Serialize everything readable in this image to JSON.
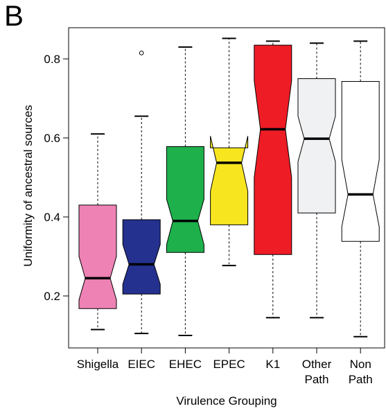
{
  "panel_label": "B",
  "chart_data": {
    "type": "boxplot",
    "notched": true,
    "xlabel": "Virulence Grouping",
    "ylabel": "Uniformity of ancestral sources",
    "ylim": [
      0.07,
      0.88
    ],
    "yticks": [
      0.2,
      0.4,
      0.6,
      0.8
    ],
    "ytick_labels": [
      "0.2",
      "0.4",
      "0.6",
      "0.8"
    ],
    "categories": [
      [
        "Shigella"
      ],
      [
        "EIEC"
      ],
      [
        "EHEC"
      ],
      [
        "EPEC"
      ],
      [
        "K1"
      ],
      [
        "Other",
        "Path"
      ],
      [
        "Non",
        "Path"
      ]
    ],
    "boxes": [
      {
        "color": "#ee82b4",
        "whisker_low": 0.115,
        "q1": 0.168,
        "notch_low": 0.19,
        "median": 0.245,
        "notch_high": 0.3,
        "q3": 0.43,
        "whisker_high": 0.61,
        "outliers": []
      },
      {
        "color": "#24318f",
        "whisker_low": 0.105,
        "q1": 0.205,
        "notch_low": 0.23,
        "median": 0.28,
        "notch_high": 0.33,
        "q3": 0.393,
        "whisker_high": 0.655,
        "outliers": [
          0.815
        ]
      },
      {
        "color": "#1db04b",
        "whisker_low": 0.1,
        "q1": 0.31,
        "notch_low": 0.33,
        "median": 0.39,
        "notch_high": 0.445,
        "q3": 0.578,
        "whisker_high": 0.83,
        "outliers": []
      },
      {
        "color": "#f7e520",
        "whisker_low": 0.277,
        "q1": 0.38,
        "notch_low": 0.465,
        "median": 0.537,
        "notch_high": 0.605,
        "q3": 0.575,
        "whisker_high": 0.852,
        "outliers": []
      },
      {
        "color": "#ee1c25",
        "whisker_low": 0.145,
        "q1": 0.305,
        "notch_low": 0.5,
        "median": 0.622,
        "notch_high": 0.745,
        "q3": 0.835,
        "whisker_high": 0.845,
        "outliers": []
      },
      {
        "color": "#f0f1f2",
        "whisker_low": 0.145,
        "q1": 0.41,
        "notch_low": 0.54,
        "median": 0.598,
        "notch_high": 0.655,
        "q3": 0.75,
        "whisker_high": 0.84,
        "outliers": []
      },
      {
        "color": "#ffffff",
        "whisker_low": 0.097,
        "q1": 0.338,
        "notch_low": 0.375,
        "median": 0.457,
        "notch_high": 0.545,
        "q3": 0.743,
        "whisker_high": 0.845,
        "outliers": []
      }
    ]
  }
}
